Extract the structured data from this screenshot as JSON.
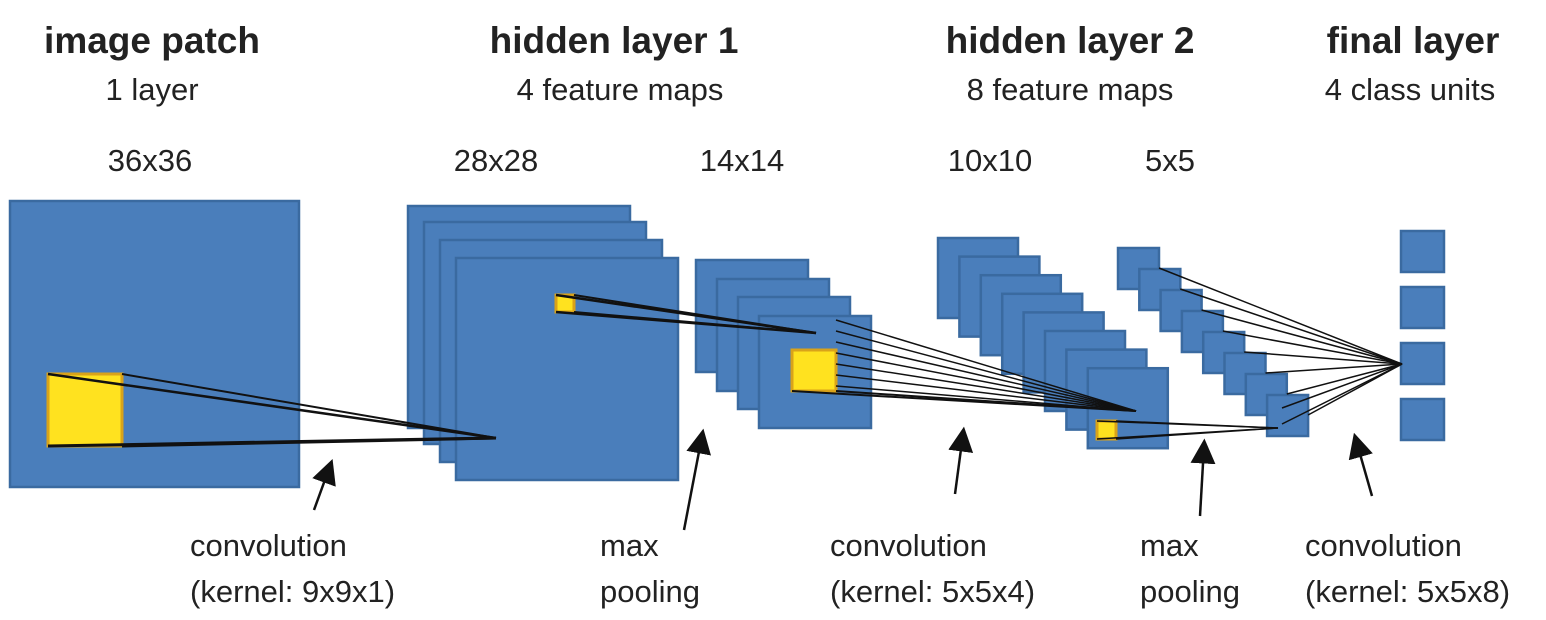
{
  "colors": {
    "map_fill": "#4a7ebb",
    "map_stroke": "#3a6aa0",
    "kernel_fill": "#ffe21f",
    "kernel_stroke": "#d9a31a",
    "line": "#111111",
    "text": "#222222"
  },
  "stages": [
    {
      "title": "image patch",
      "subtitle": "1 layer"
    },
    {
      "title": "hidden layer 1",
      "subtitle": "4 feature maps"
    },
    {
      "title": "hidden layer 2",
      "subtitle": "8 feature maps"
    },
    {
      "title": "final layer",
      "subtitle": "4 class units"
    }
  ],
  "sizes": [
    "36x36",
    "28x28",
    "14x14",
    "10x10",
    "5x5"
  ],
  "operations": [
    {
      "line1": "convolution",
      "line2": "(kernel: 9x9x1)"
    },
    {
      "line1": "max",
      "line2": "pooling"
    },
    {
      "line1": "convolution",
      "line2": "(kernel: 5x5x4)"
    },
    {
      "line1": "max",
      "line2": "pooling"
    },
    {
      "line1": "convolution",
      "line2": "(kernel: 5x5x8)"
    }
  ]
}
